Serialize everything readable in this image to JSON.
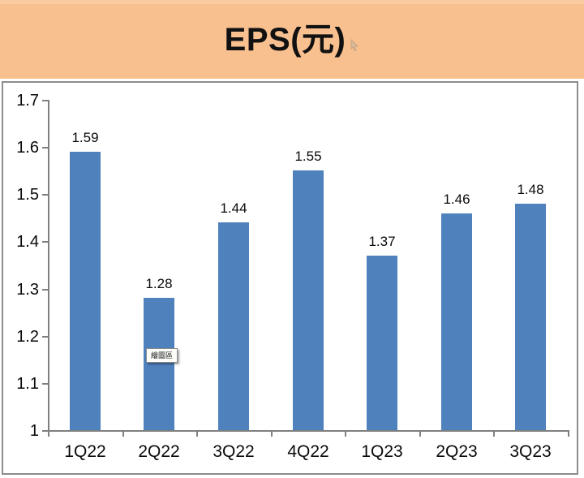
{
  "header": {
    "background": "#f8bf8f"
  },
  "tooltip": {
    "label": "繪圖區"
  },
  "chart_data": {
    "type": "bar",
    "title": "EPS(元)",
    "xlabel": "",
    "ylabel": "",
    "categories": [
      "1Q22",
      "2Q22",
      "3Q22",
      "4Q22",
      "1Q23",
      "2Q23",
      "3Q23"
    ],
    "values": [
      1.59,
      1.28,
      1.44,
      1.55,
      1.37,
      1.46,
      1.48
    ],
    "value_label_decimals": 2,
    "ylim": [
      1,
      1.7
    ],
    "yticks": [
      1,
      1.1,
      1.2,
      1.3,
      1.4,
      1.5,
      1.6,
      1.7
    ],
    "grid": false,
    "legend": false,
    "bar_color": "#4f81bd",
    "axis_color": "#7f7f7f",
    "plot_background": "#ffffff"
  }
}
